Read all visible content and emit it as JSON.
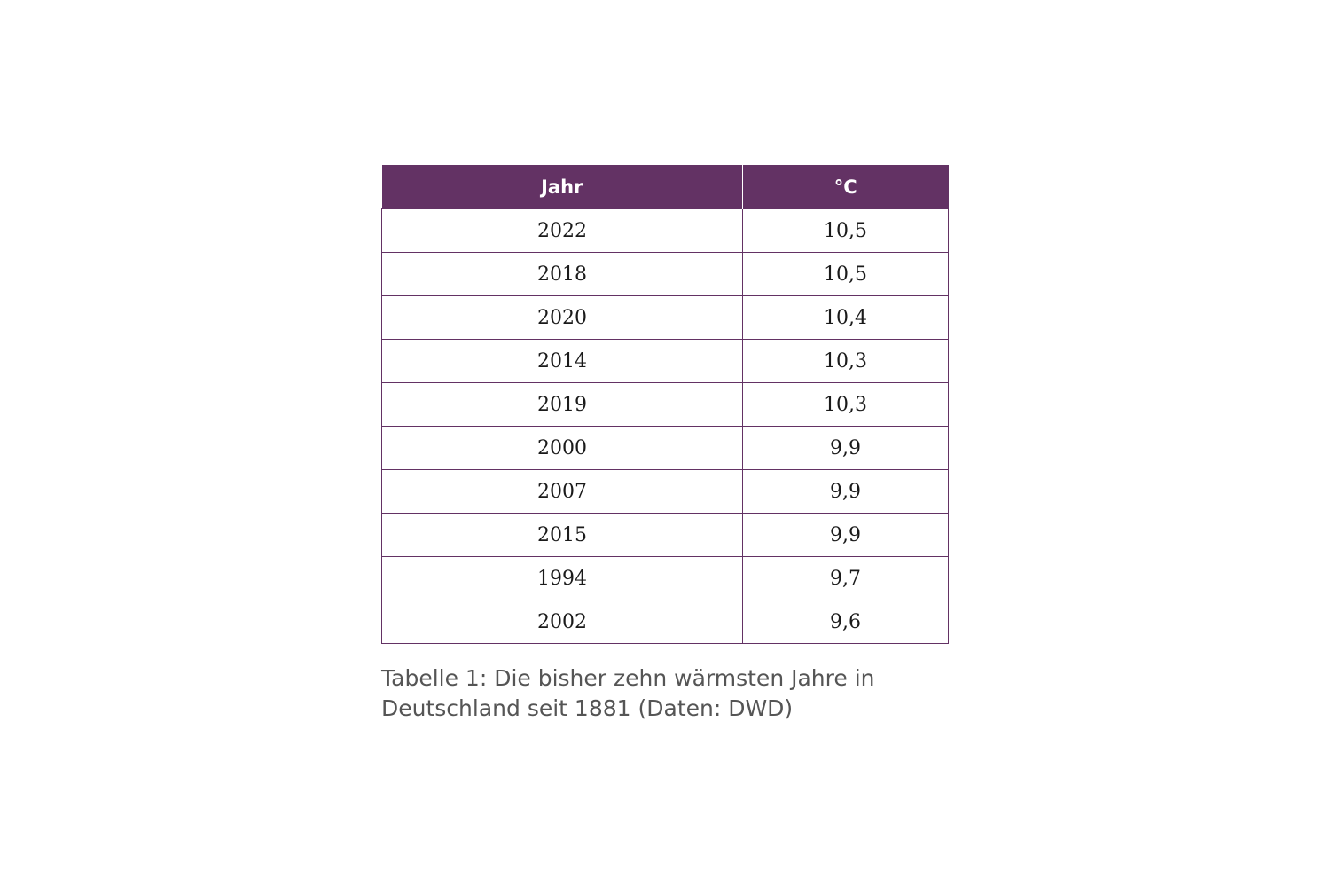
{
  "table": {
    "headers": [
      "Jahr",
      "°C"
    ],
    "rows": [
      [
        "2022",
        "10,5"
      ],
      [
        "2018",
        "10,5"
      ],
      [
        "2020",
        "10,4"
      ],
      [
        "2014",
        "10,3"
      ],
      [
        "2019",
        "10,3"
      ],
      [
        "2000",
        "9,9"
      ],
      [
        "2007",
        "9,9"
      ],
      [
        "2015",
        "9,9"
      ],
      [
        "1994",
        "9,7"
      ],
      [
        "2002",
        "9,6"
      ]
    ]
  },
  "caption": {
    "line1": "Tabelle 1: Die bisher zehn wärmsten Jahre in",
    "line2": "Deutschland seit 1881 (Daten: DWD)"
  },
  "colors": {
    "header_background": "#633264",
    "header_text": "#ffffff",
    "border": "#633264",
    "caption_text": "#555555"
  }
}
